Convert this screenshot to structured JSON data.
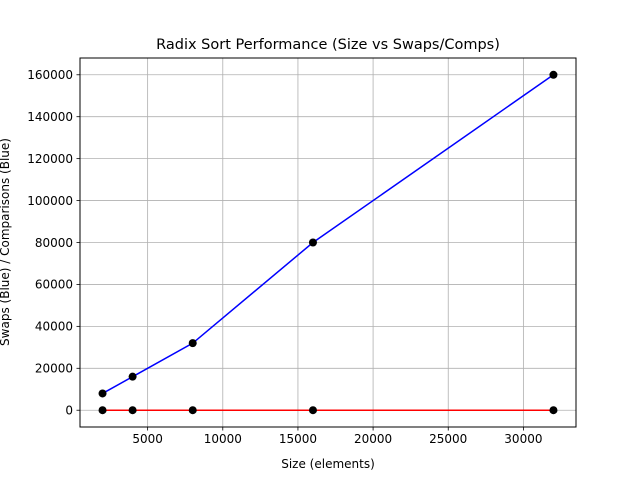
{
  "chart_data": {
    "type": "line",
    "title": "Radix Sort Performance (Size vs Swaps/Comps)",
    "xlabel": "Size (elements)",
    "ylabel": "Swaps (Blue) / Comparisons (Blue)",
    "x": [
      2000,
      4000,
      8000,
      16000,
      32000
    ],
    "xlim": [
      500,
      33500
    ],
    "ylim": [
      -8000,
      168000
    ],
    "xticks": [
      5000,
      10000,
      15000,
      20000,
      25000,
      30000
    ],
    "yticks": [
      0,
      20000,
      40000,
      60000,
      80000,
      100000,
      120000,
      140000,
      160000
    ],
    "grid": true,
    "series": [
      {
        "color": "#0000ff",
        "marker_color": "#000000",
        "values": [
          8000,
          16000,
          32000,
          80000,
          160000
        ]
      },
      {
        "color": "#ff0000",
        "marker_color": "#000000",
        "values": [
          0,
          0,
          0,
          0,
          0
        ]
      }
    ]
  }
}
